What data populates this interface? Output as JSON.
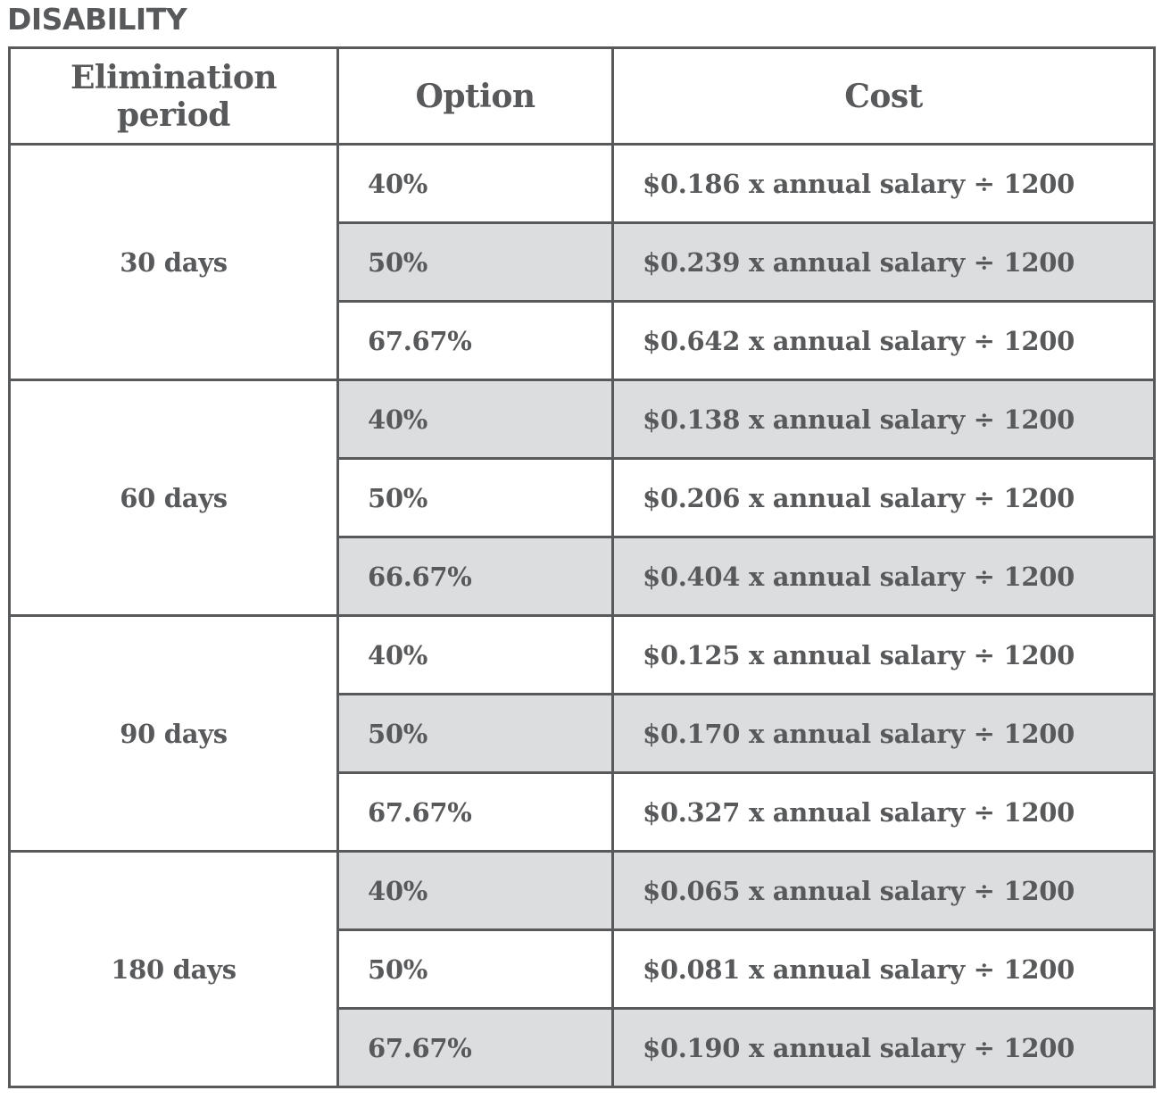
{
  "title": "DISABILITY",
  "headers": {
    "period": "Elimination period",
    "option": "Option",
    "cost": "Cost"
  },
  "groups": [
    {
      "period": "30 days",
      "rows": [
        {
          "option": "40%",
          "cost": "$0.186 x annual salary ÷ 1200",
          "shaded": false
        },
        {
          "option": "50%",
          "cost": "$0.239 x annual salary ÷ 1200",
          "shaded": true
        },
        {
          "option": "67.67%",
          "cost": "$0.642 x annual salary ÷ 1200",
          "shaded": false
        }
      ]
    },
    {
      "period": "60 days",
      "rows": [
        {
          "option": "40%",
          "cost": "$0.138 x annual salary ÷ 1200",
          "shaded": true
        },
        {
          "option": "50%",
          "cost": "$0.206 x annual salary ÷ 1200",
          "shaded": false
        },
        {
          "option": "66.67%",
          "cost": "$0.404 x annual salary ÷ 1200",
          "shaded": true
        }
      ]
    },
    {
      "period": "90 days",
      "rows": [
        {
          "option": "40%",
          "cost": "$0.125 x annual salary ÷ 1200",
          "shaded": false
        },
        {
          "option": "50%",
          "cost": "$0.170 x annual salary ÷ 1200",
          "shaded": true
        },
        {
          "option": "67.67%",
          "cost": "$0.327 x annual salary ÷ 1200",
          "shaded": false
        }
      ]
    },
    {
      "period": "180 days",
      "rows": [
        {
          "option": "40%",
          "cost": "$0.065 x annual salary ÷ 1200",
          "shaded": true
        },
        {
          "option": "50%",
          "cost": "$0.081 x annual salary ÷ 1200",
          "shaded": false
        },
        {
          "option": "67.67%",
          "cost": "$0.190 x annual salary ÷ 1200",
          "shaded": true
        }
      ]
    }
  ]
}
